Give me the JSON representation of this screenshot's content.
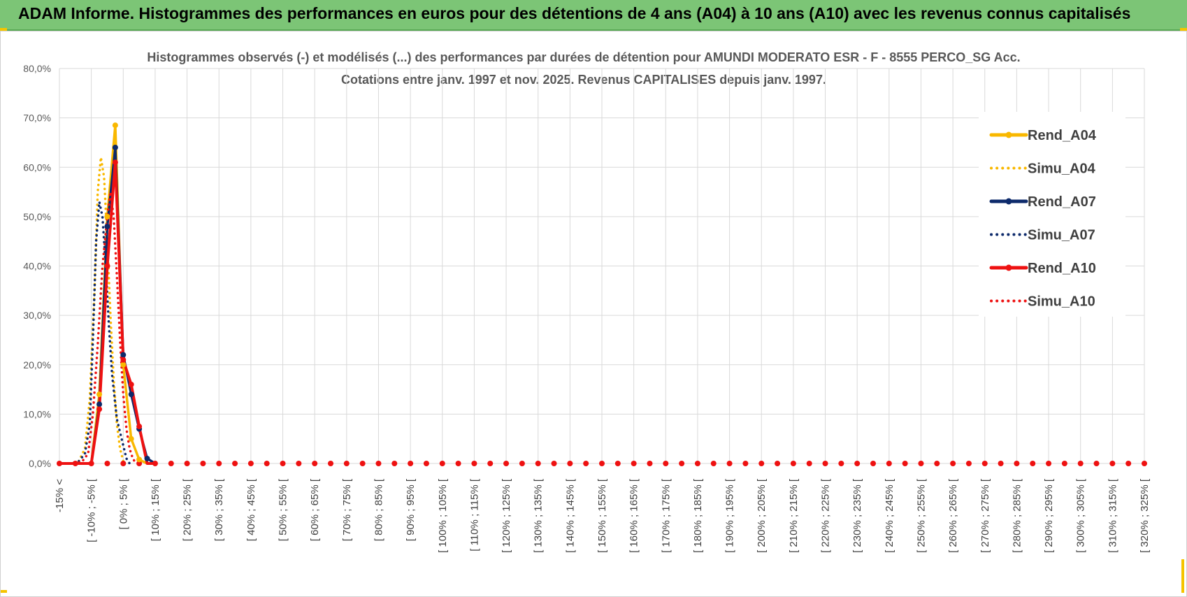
{
  "banner": {
    "title": "ADAM Informe. Histogrammes des performances en euros pour des détentions de 4 ans (A04) à 10 ans (A10) avec les revenus connus capitalisés"
  },
  "colors": {
    "banner_bg": "#7cc576",
    "A04": "#f9b800",
    "A07": "#0d2a6b",
    "A10": "#ee1111",
    "grid": "#d9d9d9"
  },
  "chart_data": {
    "type": "line",
    "title": "Histogrammes observés (-) et modélisés (...) des performances par durées de détention pour AMUNDI MODERATO ESR - F - 8555 PERCO_SG Acc.",
    "subtitle": "Cotations entre janv. 1997 et nov. 2025. Revenus CAPITALISES depuis janv. 1997.",
    "xlabel": "",
    "ylabel": "",
    "ylim": [
      0,
      80
    ],
    "yticks": [
      "0,0%",
      "10,0%",
      "20,0%",
      "30,0%",
      "40,0%",
      "50,0%",
      "60,0%",
      "70,0%",
      "80,0%"
    ],
    "grid": true,
    "legend_position": "right",
    "categories": [
      "-15% <",
      "[ -10% ; -5% [",
      "[ 0% ; 5% [",
      "[ 10% ; 15% [",
      "[ 20% ; 25% [",
      "[ 30% ; 35% [",
      "[ 40% ; 45% [",
      "[ 50% ; 55% [",
      "[ 60% ; 65% [",
      "[ 70% ; 75% [",
      "[ 80% ; 85% [",
      "[ 90% ; 95% [",
      "[ 100% ; 105% [",
      "[ 110% ; 115% [",
      "[ 120% ; 125% [",
      "[ 130% ; 135% [",
      "[ 140% ; 145% [",
      "[ 150% ; 155% [",
      "[ 160% ; 165% [",
      "[ 170% ; 175% [",
      "[ 180% ; 185% [",
      "[ 190% ; 195% [",
      "[ 200% ; 205% [",
      "[ 210% ; 215% [",
      "[ 220% ; 225% [",
      "[ 230% ; 235% [",
      "[ 240% ; 245% [",
      "[ 250% ; 255% [",
      "[ 260% ; 265% [",
      "[ 270% ; 275% [",
      "[ 280% ; 285% [",
      "[ 290% ; 295% [",
      "[ 300% ; 305% [",
      "[ 310% ; 315% [",
      "[ 320% ; 325% ["
    ],
    "series": [
      {
        "name": "Rend_A04",
        "style": "solid",
        "color": "#f9b800",
        "points": [
          [
            -15,
            0
          ],
          [
            -10,
            0
          ],
          [
            -5,
            0
          ],
          [
            -2.5,
            14
          ],
          [
            0,
            50
          ],
          [
            2.5,
            68.5
          ],
          [
            5,
            20
          ],
          [
            7.5,
            5
          ],
          [
            10,
            0.8
          ],
          [
            12.5,
            0
          ],
          [
            15,
            0
          ]
        ]
      },
      {
        "name": "Simu_A04",
        "style": "dotted",
        "color": "#f9b800",
        "points": [
          [
            -15,
            0
          ],
          [
            -12,
            0
          ],
          [
            -9,
            0.4
          ],
          [
            -7,
            3
          ],
          [
            -5.5,
            13
          ],
          [
            -4,
            35
          ],
          [
            -3,
            55
          ],
          [
            -2,
            62
          ],
          [
            -1,
            58
          ],
          [
            0,
            45
          ],
          [
            1,
            30
          ],
          [
            2,
            17
          ],
          [
            3,
            8
          ],
          [
            4,
            3
          ],
          [
            5,
            0.5
          ],
          [
            6,
            0
          ]
        ]
      },
      {
        "name": "Rend_A07",
        "style": "solid",
        "color": "#0d2a6b",
        "points": [
          [
            -15,
            0
          ],
          [
            -10,
            0
          ],
          [
            -5,
            0
          ],
          [
            -2.5,
            12
          ],
          [
            0,
            48
          ],
          [
            2.5,
            64
          ],
          [
            5,
            22
          ],
          [
            7.5,
            14
          ],
          [
            10,
            7
          ],
          [
            12.5,
            1
          ],
          [
            15,
            0
          ]
        ]
      },
      {
        "name": "Simu_A07",
        "style": "dotted",
        "color": "#0d2a6b",
        "points": [
          [
            -15,
            0
          ],
          [
            -12,
            0
          ],
          [
            -9,
            0.4
          ],
          [
            -7,
            2
          ],
          [
            -5.5,
            8
          ],
          [
            -4.5,
            25
          ],
          [
            -3.5,
            45
          ],
          [
            -2.5,
            53
          ],
          [
            -1.5,
            50
          ],
          [
            -0.5,
            40
          ],
          [
            0.5,
            28
          ],
          [
            1.5,
            18
          ],
          [
            3,
            9
          ],
          [
            4.5,
            5
          ],
          [
            6,
            1
          ],
          [
            7,
            0
          ]
        ]
      },
      {
        "name": "Rend_A10",
        "style": "solid",
        "color": "#ee1111",
        "points": [
          [
            -15,
            0
          ],
          [
            -10,
            0
          ],
          [
            -5,
            0
          ],
          [
            -2.5,
            11
          ],
          [
            0,
            40
          ],
          [
            2.5,
            61
          ],
          [
            5,
            21
          ],
          [
            7.5,
            16
          ],
          [
            10,
            7.5
          ],
          [
            12.5,
            0
          ],
          [
            15,
            0
          ]
        ]
      },
      {
        "name": "Simu_A10",
        "style": "dotted",
        "color": "#ee1111",
        "points": [
          [
            -15,
            0
          ],
          [
            -11,
            0
          ],
          [
            -8,
            0.3
          ],
          [
            -6,
            2
          ],
          [
            -4.5,
            10
          ],
          [
            -3,
            24
          ],
          [
            -1.5,
            40
          ],
          [
            0,
            50
          ],
          [
            1,
            55
          ],
          [
            2,
            50
          ],
          [
            3,
            38
          ],
          [
            4,
            25
          ],
          [
            5,
            14
          ],
          [
            6,
            7
          ],
          [
            7,
            3
          ],
          [
            8,
            1
          ],
          [
            9,
            0
          ]
        ]
      }
    ]
  }
}
